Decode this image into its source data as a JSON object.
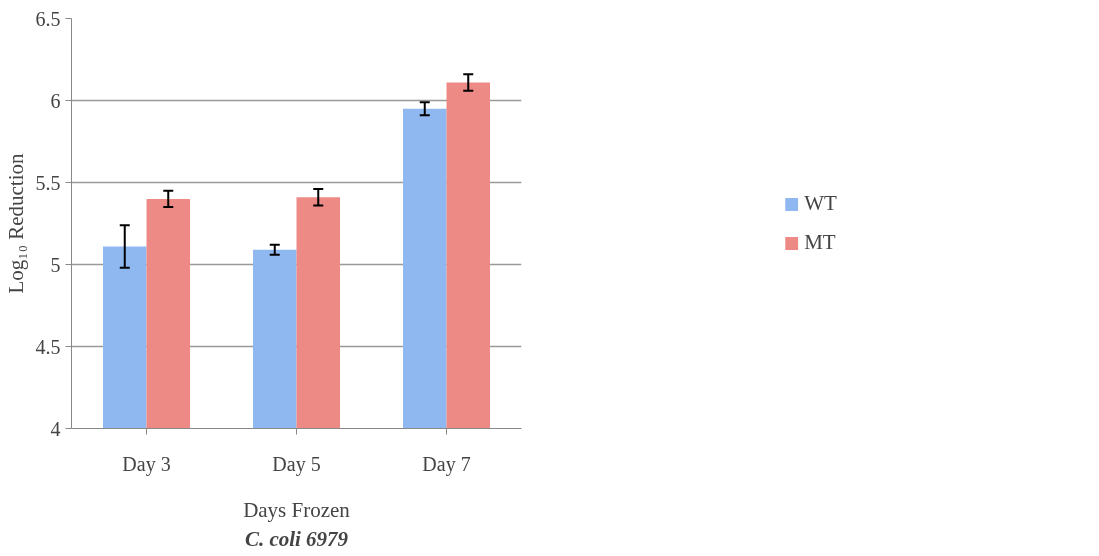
{
  "chart_data": {
    "type": "bar",
    "xlabel": "Days Frozen",
    "ylabel": "Log₁₀ Reduction",
    "annotations": [
      "C. coli 6979"
    ],
    "categories": [
      "Day 3",
      "Day 5",
      "Day 7"
    ],
    "series": [
      {
        "name": "WT",
        "color": "#8fb8f0",
        "values": [
          5.11,
          5.09,
          5.95
        ],
        "errors": [
          0.13,
          0.03,
          0.04
        ]
      },
      {
        "name": "MT",
        "color": "#ee8a85",
        "values": [
          5.4,
          5.41,
          6.11
        ],
        "errors": [
          0.05,
          0.05,
          0.05
        ]
      }
    ],
    "ylim": [
      4,
      6.5
    ],
    "yticks": [
      4,
      {
        "value": 4.5,
        "label": "4.5"
      },
      5,
      {
        "value": 5.5,
        "label": "5.5"
      },
      6,
      {
        "value": 6.5,
        "label": "6.5"
      }
    ],
    "grid": "y",
    "legend": "right"
  }
}
